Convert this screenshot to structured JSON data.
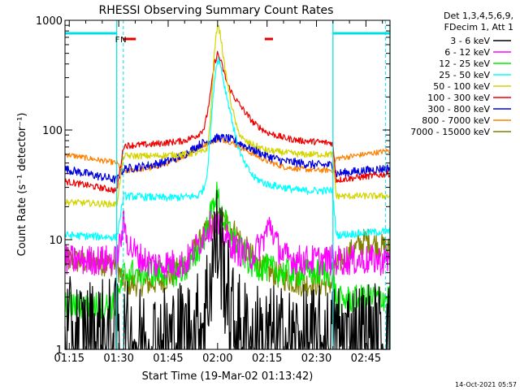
{
  "chart_data": {
    "type": "line",
    "title": "RHESSI Observing Summary Count Rates",
    "xlabel": "Start Time (19-Mar-02 01:13:42)",
    "ylabel": "Count Rate (s⁻¹ detector⁻¹)",
    "ylog": true,
    "ylim": [
      1,
      1000
    ],
    "xlim_minutes": [
      73.7,
      172.3
    ],
    "xticks": [
      {
        "m": 75,
        "label": "01:15"
      },
      {
        "m": 90,
        "label": "01:30"
      },
      {
        "m": 105,
        "label": "01:45"
      },
      {
        "m": 120,
        "label": "02:00"
      },
      {
        "m": 135,
        "label": "02:15"
      },
      {
        "m": 150,
        "label": "02:30"
      },
      {
        "m": 165,
        "label": "02:45"
      }
    ],
    "yticks": [
      {
        "v": 1,
        "label": "1"
      },
      {
        "v": 10,
        "label": "10"
      },
      {
        "v": 100,
        "label": "100"
      },
      {
        "v": 1000,
        "label": "1000"
      }
    ],
    "legend_header": [
      "Det 1,3,4,5,6,9,",
      "FDecim 1, Att 1"
    ],
    "legend_placement": "right",
    "footer_timestamp": "14-Oct-2021 05:57",
    "grid": false,
    "night_intervals": [
      [
        73.7,
        89.4
      ],
      [
        155.0,
        172.3
      ]
    ],
    "night_color": "#00e0e0",
    "saa_marker_color": "#e00000",
    "flags": [
      {
        "label": "F",
        "m": 89.6,
        "color": "#e00000"
      },
      {
        "label": "N",
        "m": 91.4,
        "color": "#00c8c8"
      }
    ],
    "flag_bars": [
      [
        91.3,
        95.2
      ],
      [
        134.3,
        136.8
      ]
    ],
    "series": [
      {
        "name": "3 - 6 keV",
        "color": "#000000",
        "x": [
          73.7,
          89.4,
          91.5,
          100,
          110,
          114,
          116,
          118,
          119.5,
          121,
          122.5,
          124,
          126,
          130,
          140,
          154.9,
          156,
          172.3
        ],
        "y": [
          1.3,
          1.3,
          1.2,
          1.1,
          1.3,
          1.5,
          2,
          5,
          10,
          8,
          4,
          2,
          1.5,
          1.2,
          1.1,
          1.1,
          1.3,
          1.2
        ]
      },
      {
        "name": "6 - 12 keV",
        "color": "#ff00ff",
        "x": [
          73.7,
          89.4,
          91.5,
          93,
          96,
          100,
          105,
          110,
          114,
          117,
          119.5,
          121,
          123,
          126,
          130,
          133,
          136,
          138,
          140,
          145,
          150,
          154.9,
          156,
          165,
          172.3
        ],
        "y": [
          6.5,
          6.5,
          14,
          9,
          7,
          6,
          6,
          6,
          9,
          13,
          14,
          12,
          10,
          8,
          7,
          9,
          14,
          9,
          7,
          6.5,
          6.5,
          6.5,
          6.5,
          6.5,
          6.5
        ]
      },
      {
        "name": "12 - 25 keV",
        "color": "#00ee00",
        "x": [
          73.7,
          89.4,
          91.5,
          100,
          108,
          112,
          115,
          117,
          118.5,
          119.5,
          120.5,
          121.5,
          123,
          125,
          127,
          130,
          135,
          140,
          145,
          154.9,
          156,
          172.3
        ],
        "y": [
          2.5,
          2.5,
          5,
          5,
          5,
          6,
          9,
          13,
          20,
          27,
          22,
          16,
          13,
          10,
          8,
          6,
          5.5,
          5,
          5,
          5,
          2.8,
          3
        ]
      },
      {
        "name": "25 - 50 keV",
        "color": "#00ffff",
        "x": [
          73.7,
          89.4,
          91.5,
          105,
          114,
          116,
          117,
          118,
          119,
          120,
          121,
          122,
          123,
          124,
          125,
          126,
          128,
          131,
          135,
          145,
          154.9,
          156,
          172.3
        ],
        "y": [
          11,
          10.5,
          25,
          24,
          25,
          30,
          45,
          110,
          280,
          460,
          380,
          260,
          190,
          140,
          100,
          75,
          50,
          37,
          32,
          28,
          28,
          11,
          12
        ]
      },
      {
        "name": "50 - 100 keV",
        "color": "#d4d400",
        "x": [
          73.7,
          89.4,
          91.5,
          100,
          110,
          114,
          116,
          117,
          118,
          119,
          120,
          121,
          122,
          124,
          126,
          128,
          130,
          135,
          145,
          154.9,
          156,
          172.3
        ],
        "y": [
          22,
          21,
          58,
          58,
          60,
          62,
          64,
          70,
          150,
          500,
          950,
          700,
          400,
          180,
          100,
          80,
          75,
          65,
          60,
          60,
          25,
          25
        ]
      },
      {
        "name": "100 - 300 keV",
        "color": "#ee0000",
        "x": [
          73.7,
          89.4,
          91.5,
          100,
          110,
          114,
          116,
          117,
          118,
          119,
          120,
          121,
          122,
          123,
          125,
          128,
          131,
          135,
          140,
          145,
          150,
          154.9,
          156,
          172.3
        ],
        "y": [
          34,
          28,
          72,
          74,
          80,
          90,
          105,
          150,
          230,
          400,
          500,
          420,
          330,
          260,
          200,
          150,
          115,
          95,
          85,
          80,
          78,
          76,
          35,
          40
        ]
      },
      {
        "name": "300 - 800 keV",
        "color": "#0000dd",
        "x": [
          73.7,
          89.4,
          91.5,
          100,
          105,
          110,
          115,
          120,
          123,
          126,
          130,
          135,
          140,
          145,
          150,
          154.9,
          156,
          172.3
        ],
        "y": [
          44,
          35,
          44,
          48,
          52,
          60,
          75,
          85,
          84,
          78,
          68,
          58,
          52,
          50,
          48,
          48,
          40,
          45
        ]
      },
      {
        "name": "800 - 7000 keV",
        "color": "#ff8000",
        "x": [
          73.7,
          89.4,
          91.5,
          100,
          105,
          110,
          115,
          120,
          123,
          126,
          130,
          135,
          140,
          145,
          150,
          154.9,
          156,
          172.3
        ],
        "y": [
          60,
          50,
          42,
          45,
          50,
          58,
          72,
          82,
          80,
          72,
          62,
          52,
          46,
          44,
          43,
          43,
          55,
          65
        ]
      },
      {
        "name": "7000 - 15000 keV",
        "color": "#808000",
        "x": [
          73.7,
          89.4,
          91.5,
          95,
          100,
          105,
          110,
          113,
          116,
          119,
          121,
          123,
          126,
          129,
          132,
          136,
          140,
          145,
          150,
          154.9,
          156,
          165,
          172.3
        ],
        "y": [
          6.5,
          6,
          4,
          4,
          4,
          4.5,
          6,
          8,
          11,
          14,
          15,
          14,
          11,
          8,
          6,
          5,
          4.5,
          4,
          4,
          4,
          6,
          10,
          8
        ]
      }
    ]
  }
}
